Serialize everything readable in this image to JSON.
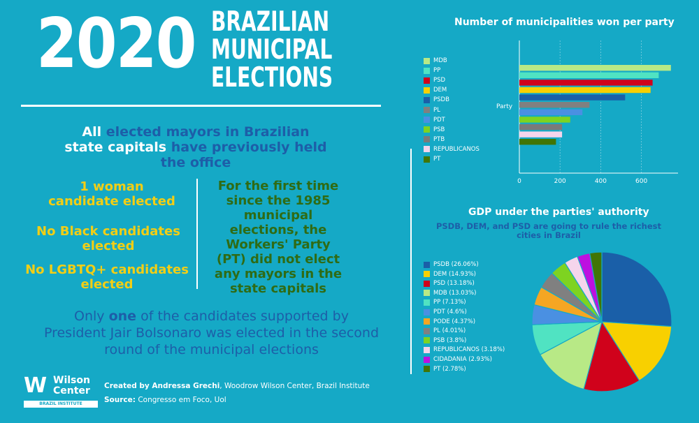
{
  "header": {
    "year": "2020",
    "title_lines": [
      "BRAZILIAN",
      "MUNICIPAL",
      "ELECTIONS"
    ]
  },
  "facts": {
    "intro_a": "All ",
    "intro_b": "elected mayors in Brazilian",
    "intro_c": "state capitals ",
    "intro_d": "have previously held",
    "intro_e": "the office",
    "woman": [
      "1 woman",
      "candidate elected"
    ],
    "black": [
      "No Black candidates",
      "elected"
    ],
    "lgbtq": [
      "No LGBTQ+ candidates",
      "elected"
    ],
    "pt": [
      "For the first time",
      "since the 1985",
      "municipal",
      "elections, the",
      "Workers' Party",
      "(PT) did not elect",
      "any mayors in the",
      "state capitals"
    ],
    "only_a": "Only ",
    "only_b": "one",
    "only_c": " of the candidates supported by",
    "only_d": "President Jair Bolsonaro was elected in the second",
    "only_e": "round of the municipal elections"
  },
  "footer": {
    "logo_w": "W",
    "logo_name_1": "Wilson",
    "logo_name_2": "Center",
    "logo_sub": "BRAZIL INSTITUTE",
    "created_label": "Created by Andressa Grechi",
    "created_rest": ", Woodrow Wilson Center, Brazil Institute",
    "source_label": "Source:",
    "source_rest": " Congresso em Foco, Uol"
  },
  "colors": {
    "background": "#15a9c6",
    "MDB": "#b8e986",
    "PP": "#50e3c2",
    "PSD": "#d0021b",
    "DEM": "#f8d000",
    "PSDB": "#1a5fa8",
    "PL": "#808080",
    "PDT": "#4a90e2",
    "PSB": "#7ed321",
    "PTB": "#7a7a7a",
    "REPUBLICANOS": "#f5d5ec",
    "PT": "#417505",
    "PODE": "#f5a623",
    "CIDADANIA": "#bd10e0"
  },
  "chart_data": [
    {
      "type": "bar",
      "orientation": "horizontal",
      "title": "Number of municipalities won per party",
      "ylabel": "Party",
      "categories": [
        "MDB",
        "PP",
        "PSD",
        "DEM",
        "PSDB",
        "PL",
        "PDT",
        "PSB",
        "PTB",
        "REPUBLICANOS",
        "PT"
      ],
      "values": [
        745,
        685,
        655,
        645,
        520,
        345,
        310,
        250,
        210,
        210,
        180
      ],
      "xlim": [
        0,
        780
      ],
      "xticks": [
        0,
        200,
        400,
        600
      ],
      "grid": true,
      "legend_position": "left"
    },
    {
      "type": "pie",
      "title": "GDP under the parties' authority",
      "subtitle": "PSDB, DEM, and PSD are going to rule the richest cities in Brazil",
      "labels": [
        "PSDB (26.06%)",
        "DEM (14.93%)",
        "PSD (13.18%)",
        "MDB (13.03%)",
        "PP (7.13%)",
        "PDT (4.6%)",
        "PODE (4.37%)",
        "PL (4.01%)",
        "PSB (3.8%)",
        "REPUBLICANOS (3.18%)",
        "CIDADANIA (2.93%)",
        "PT (2.78%)"
      ],
      "parties": [
        "PSDB",
        "DEM",
        "PSD",
        "MDB",
        "PP",
        "PDT",
        "PODE",
        "PL",
        "PSB",
        "REPUBLICANOS",
        "CIDADANIA",
        "PT"
      ],
      "values": [
        26.06,
        14.93,
        13.18,
        13.03,
        7.13,
        4.6,
        4.37,
        4.01,
        3.8,
        3.18,
        2.93,
        2.78
      ],
      "legend_position": "left"
    }
  ]
}
